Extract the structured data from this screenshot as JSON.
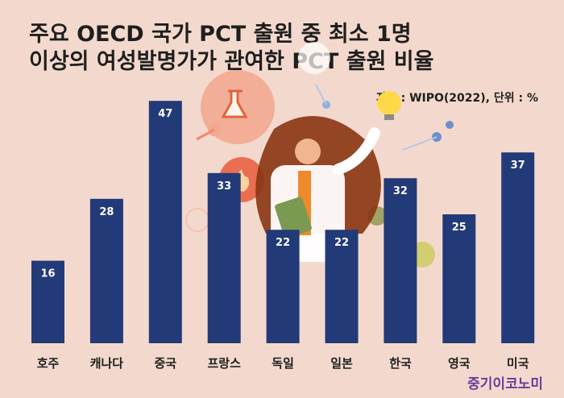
{
  "title_line1": "주요 OECD 국가 PCT 출원 중 최소 1명",
  "title_line2": "이상의 여성발명가가 관여한 PCT 출원 비율",
  "source": "자료 : WIPO(2022), 단위 : %",
  "brand": "중기이코노미",
  "colors": {
    "bar": "#223a78",
    "background": "#f3d9cd",
    "text": "#1e1e1e",
    "brand": "#6a3a9a"
  },
  "chart_data": {
    "type": "bar",
    "categories": [
      "호주",
      "캐나다",
      "중국",
      "프랑스",
      "독일",
      "일본",
      "한국",
      "영국",
      "미국"
    ],
    "values": [
      16,
      28,
      47,
      33,
      22,
      22,
      32,
      25,
      37
    ],
    "title": "주요 OECD 국가 PCT 출원 중 최소 1명 이상의 여성발명가가 관여한 PCT 출원 비율",
    "xlabel": "",
    "ylabel": "",
    "ylim": [
      0,
      50
    ],
    "grid": false,
    "legend": "none"
  }
}
